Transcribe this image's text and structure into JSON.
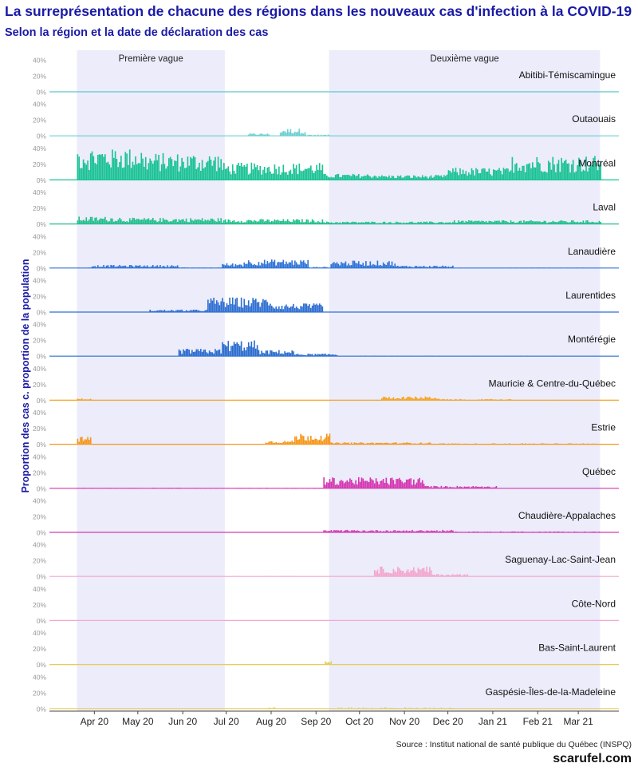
{
  "title": "La surreprésentation de chacune des régions dans les nouveaux cas d'infection à la COVID-19",
  "subtitle": "Selon la région et la date de déclaration des cas",
  "source": "Source : Institut national de santé publique du Québec (INSPQ)",
  "brand": "scarufel.com",
  "chart_data": {
    "type": "bar",
    "ylabel": "Proportion des cas c. proportion de la population",
    "x_ticks": [
      "Apr 20",
      "May 20",
      "Jun 20",
      "Jul 20",
      "Aug 20",
      "Sep 20",
      "Oct 20",
      "Nov 20",
      "Dec 20",
      "Jan 21",
      "Feb 21",
      "Mar 21"
    ],
    "y_ticks": [
      "0%",
      "20%",
      "40%"
    ],
    "ylim": [
      0,
      40
    ],
    "grid": false,
    "waves": [
      {
        "label": "Première vague",
        "start": "2020-03-20",
        "end": "2020-06-30"
      },
      {
        "label": "Deuxième vague",
        "start": "2020-09-10",
        "end": "2021-03-16"
      }
    ],
    "series": [
      {
        "name": "Abitibi-Témiscamingue",
        "color": "#5ec8c8",
        "profile": [
          [
            0,
            100,
            0
          ]
        ]
      },
      {
        "name": "Outaouais",
        "color": "#6ccfcf",
        "profile": [
          [
            0,
            100,
            0
          ],
          [
            118,
            133,
            2
          ],
          [
            140,
            158,
            6
          ],
          [
            158,
            175,
            1
          ]
        ]
      },
      {
        "name": "Montréal",
        "color": "#19c294",
        "profile": [
          [
            0,
            45,
            27
          ],
          [
            45,
            100,
            22
          ],
          [
            100,
            170,
            14
          ],
          [
            170,
            210,
            5
          ],
          [
            210,
            255,
            4
          ],
          [
            255,
            300,
            10
          ],
          [
            300,
            362,
            20
          ]
        ]
      },
      {
        "name": "Laval",
        "color": "#22bf8c",
        "profile": [
          [
            0,
            30,
            6
          ],
          [
            30,
            100,
            5
          ],
          [
            100,
            170,
            4
          ],
          [
            170,
            260,
            2
          ],
          [
            260,
            362,
            3
          ]
        ]
      },
      {
        "name": "Lanaudière",
        "color": "#2f73d6",
        "profile": [
          [
            0,
            10,
            0.5
          ],
          [
            10,
            70,
            2.5
          ],
          [
            70,
            100,
            0.5
          ],
          [
            100,
            115,
            4
          ],
          [
            115,
            160,
            7
          ],
          [
            160,
            175,
            1
          ],
          [
            175,
            220,
            6
          ],
          [
            220,
            260,
            2
          ],
          [
            260,
            362,
            0.3
          ]
        ]
      },
      {
        "name": "Laurentides",
        "color": "#2f6fd2",
        "profile": [
          [
            0,
            50,
            0
          ],
          [
            50,
            90,
            2
          ],
          [
            90,
            135,
            12
          ],
          [
            135,
            170,
            7
          ],
          [
            170,
            362,
            0
          ]
        ]
      },
      {
        "name": "Montérégie",
        "color": "#2a6cce",
        "profile": [
          [
            0,
            70,
            0
          ],
          [
            70,
            100,
            6
          ],
          [
            100,
            125,
            13
          ],
          [
            125,
            150,
            5
          ],
          [
            150,
            180,
            2
          ],
          [
            180,
            362,
            0.3
          ]
        ]
      },
      {
        "name": "Mauricie & Centre-du-Québec",
        "color": "#f5a21f",
        "profile": [
          [
            0,
            10,
            1.5
          ],
          [
            10,
            210,
            0.2
          ],
          [
            210,
            250,
            3
          ],
          [
            250,
            300,
            1
          ],
          [
            300,
            362,
            0.3
          ]
        ]
      },
      {
        "name": "Estrie",
        "color": "#f5961a",
        "profile": [
          [
            0,
            10,
            6
          ],
          [
            10,
            130,
            0.3
          ],
          [
            130,
            150,
            3
          ],
          [
            150,
            175,
            9
          ],
          [
            175,
            245,
            1.5
          ],
          [
            245,
            362,
            0.8
          ]
        ]
      },
      {
        "name": "Québec",
        "color": "#d436b0",
        "profile": [
          [
            0,
            170,
            0.5
          ],
          [
            170,
            240,
            9
          ],
          [
            240,
            290,
            2
          ],
          [
            290,
            362,
            0.2
          ]
        ]
      },
      {
        "name": "Chaudière-Appalaches",
        "color": "#d33cb0",
        "profile": [
          [
            0,
            170,
            0
          ],
          [
            170,
            260,
            2
          ],
          [
            260,
            362,
            0.8
          ]
        ]
      },
      {
        "name": "Saguenay-Lac-Saint-Jean",
        "color": "#f3a7cf",
        "profile": [
          [
            0,
            205,
            0.3
          ],
          [
            205,
            245,
            8
          ],
          [
            245,
            270,
            2
          ],
          [
            270,
            362,
            0
          ]
        ]
      },
      {
        "name": "Côte-Nord",
        "color": "#f2a9cf",
        "profile": [
          [
            0,
            100,
            0
          ]
        ]
      },
      {
        "name": "Bas-Saint-Laurent",
        "color": "#e4cd58",
        "profile": [
          [
            0,
            171,
            0
          ],
          [
            171,
            176,
            5
          ],
          [
            176,
            362,
            0
          ]
        ]
      },
      {
        "name": "Gaspésie-Îles-de-la-Madeleine",
        "color": "#e6cf5c",
        "profile": [
          [
            0,
            10,
            0.3
          ],
          [
            10,
            130,
            0.1
          ],
          [
            130,
            140,
            1
          ],
          [
            140,
            175,
            0.1
          ],
          [
            175,
            260,
            1
          ],
          [
            260,
            362,
            0.1
          ]
        ]
      }
    ]
  }
}
